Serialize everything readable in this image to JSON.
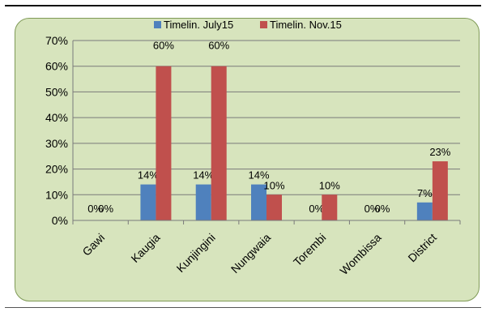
{
  "chart_data": {
    "type": "bar",
    "title": "",
    "xlabel": "",
    "ylabel": "",
    "ylim": [
      0,
      70
    ],
    "yticks": [
      "0%",
      "10%",
      "20%",
      "30%",
      "40%",
      "50%",
      "60%",
      "70%"
    ],
    "grid": true,
    "legend_position": "top",
    "categories": [
      "Gawi",
      "Kaugia",
      "Kunjingini",
      "Nungwaia",
      "Torembi",
      "Wombissa",
      "District"
    ],
    "series": [
      {
        "name": "Timelin. July15",
        "color": "#4f81bd",
        "values": [
          0,
          14,
          14,
          14,
          0,
          0,
          7
        ],
        "labels": [
          "0%",
          "14%",
          "14%",
          "14%",
          "0%",
          "0%",
          "7%"
        ]
      },
      {
        "name": "Timelin. Nov.15",
        "color": "#c0504d",
        "values": [
          0,
          60,
          60,
          10,
          10,
          0,
          23
        ],
        "labels": [
          "0%",
          "60%",
          "60%",
          "10%",
          "10%",
          "0%",
          "23%"
        ]
      }
    ]
  }
}
